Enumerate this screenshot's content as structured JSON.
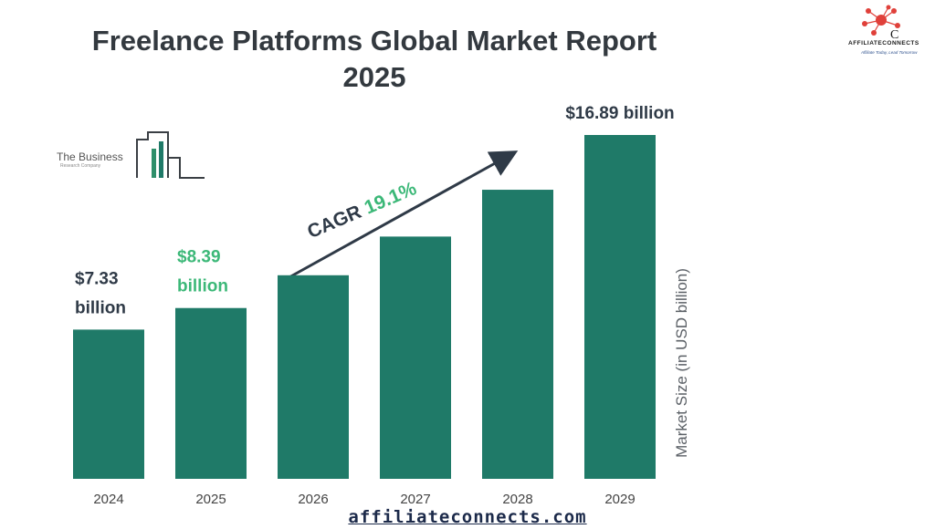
{
  "title_line1": "Freelance Platforms Global Market Report",
  "title_line2": "2025",
  "source_logo_text": "The Business",
  "source_logo_subtext": "Research Company",
  "brand": {
    "name": "AFFILIATECONNECTS",
    "tagline": "Affiliate Today, Lead Tomorrow",
    "url": "affiliateconnects.com"
  },
  "colors": {
    "bar": "#1f7a68",
    "title": "#33393f",
    "highlight": "#3cb878",
    "dark_label": "#2f3a47",
    "brand_red": "#e0403a"
  },
  "chart_data": {
    "type": "bar",
    "title": "Freelance Platforms Global Market Report 2025",
    "xlabel": "",
    "ylabel": "Market Size (in USD billion)",
    "categories": [
      "2024",
      "2025",
      "2026",
      "2027",
      "2028",
      "2029"
    ],
    "values": [
      7.33,
      8.39,
      10.0,
      11.9,
      14.2,
      16.89
    ],
    "ylim": [
      0,
      16.89
    ],
    "grid": false,
    "legend": "none",
    "annotations": {
      "cagr_label": "CAGR",
      "cagr_value": "19.1%",
      "bar_labels": [
        {
          "index": 0,
          "line1": "$7.33",
          "line2": "billion",
          "color": "#2f3a47"
        },
        {
          "index": 1,
          "line1": "$8.39",
          "line2": "billion",
          "color": "#3cb878"
        },
        {
          "index": 5,
          "line1": "$16.89 billion",
          "line2": "",
          "color": "#2f3a47"
        }
      ]
    }
  }
}
